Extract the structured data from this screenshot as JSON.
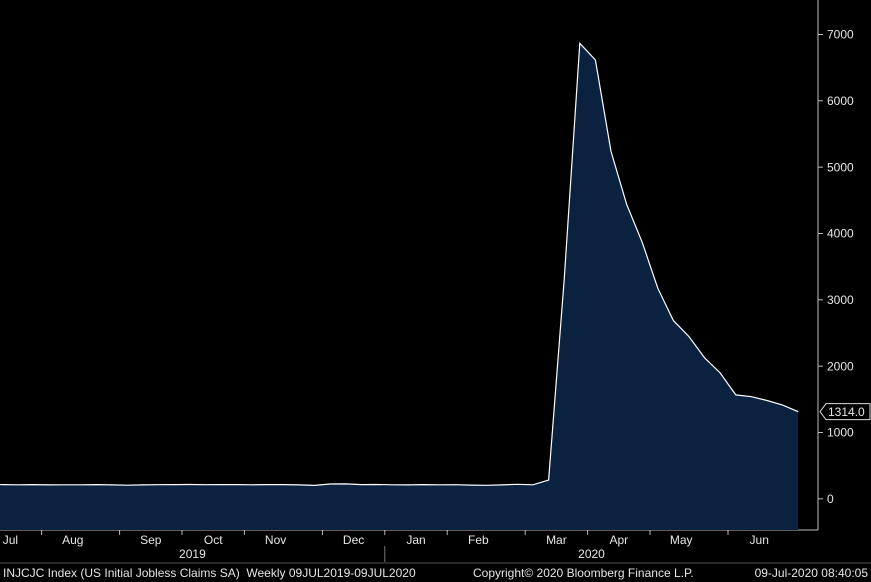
{
  "chart_data": {
    "type": "area",
    "categories": [
      "Jul",
      null,
      null,
      null,
      "Aug",
      null,
      null,
      null,
      null,
      "Sep",
      null,
      null,
      null,
      "Oct",
      null,
      null,
      null,
      "Nov",
      null,
      null,
      null,
      null,
      "Dec",
      null,
      null,
      null,
      "Jan",
      null,
      null,
      null,
      "Feb",
      null,
      null,
      null,
      null,
      "Mar",
      null,
      null,
      null,
      "Apr",
      null,
      null,
      null,
      "May",
      null,
      null,
      null,
      null,
      "Jun",
      null,
      null,
      null,
      null
    ],
    "year_labels": [
      "2019",
      "2020"
    ],
    "series": [
      {
        "name": "INJCJC Index (US Initial Jobless Claims SA)",
        "color": "#0b2140",
        "line_color": "#ffffff",
        "values": [
          216,
          214,
          212,
          215,
          210,
          211,
          212,
          214,
          210,
          206,
          210,
          213,
          215,
          216,
          213,
          215,
          214,
          212,
          215,
          214,
          210,
          203,
          224,
          225,
          214,
          216,
          212,
          210,
          215,
          212,
          213,
          207,
          204,
          210,
          219,
          211,
          282,
          3307,
          6867,
          6615,
          5237,
          4442,
          3867,
          3176,
          2687,
          2446,
          2126,
          1897,
          1566,
          1540,
          1482,
          1413,
          1314
        ],
        "value_labels": [
          null,
          null,
          null,
          null,
          null,
          null,
          null,
          null,
          null,
          null,
          null,
          null,
          null,
          null,
          null,
          null,
          null,
          null,
          null,
          null,
          null,
          null,
          null,
          null,
          null,
          null,
          null,
          null,
          null,
          null,
          null,
          null,
          null,
          null,
          null,
          null,
          null,
          null,
          null,
          null,
          null,
          null,
          null,
          null,
          null,
          null,
          null,
          null,
          null,
          null,
          null,
          null,
          "1314.0"
        ]
      }
    ],
    "ylim": [
      -470,
      7520
    ],
    "yticks": [
      0,
      1000,
      2000,
      3000,
      4000,
      5000,
      6000,
      7000
    ],
    "footer": {
      "description": "INJCJC Index (US Initial Jobless Claims SA)  Weekly 09JUL2019-09JUL2020",
      "copyright": "Copyright© 2020 Bloomberg Finance L.P.",
      "timestamp": "09-Jul-2020 08:40:05"
    }
  }
}
